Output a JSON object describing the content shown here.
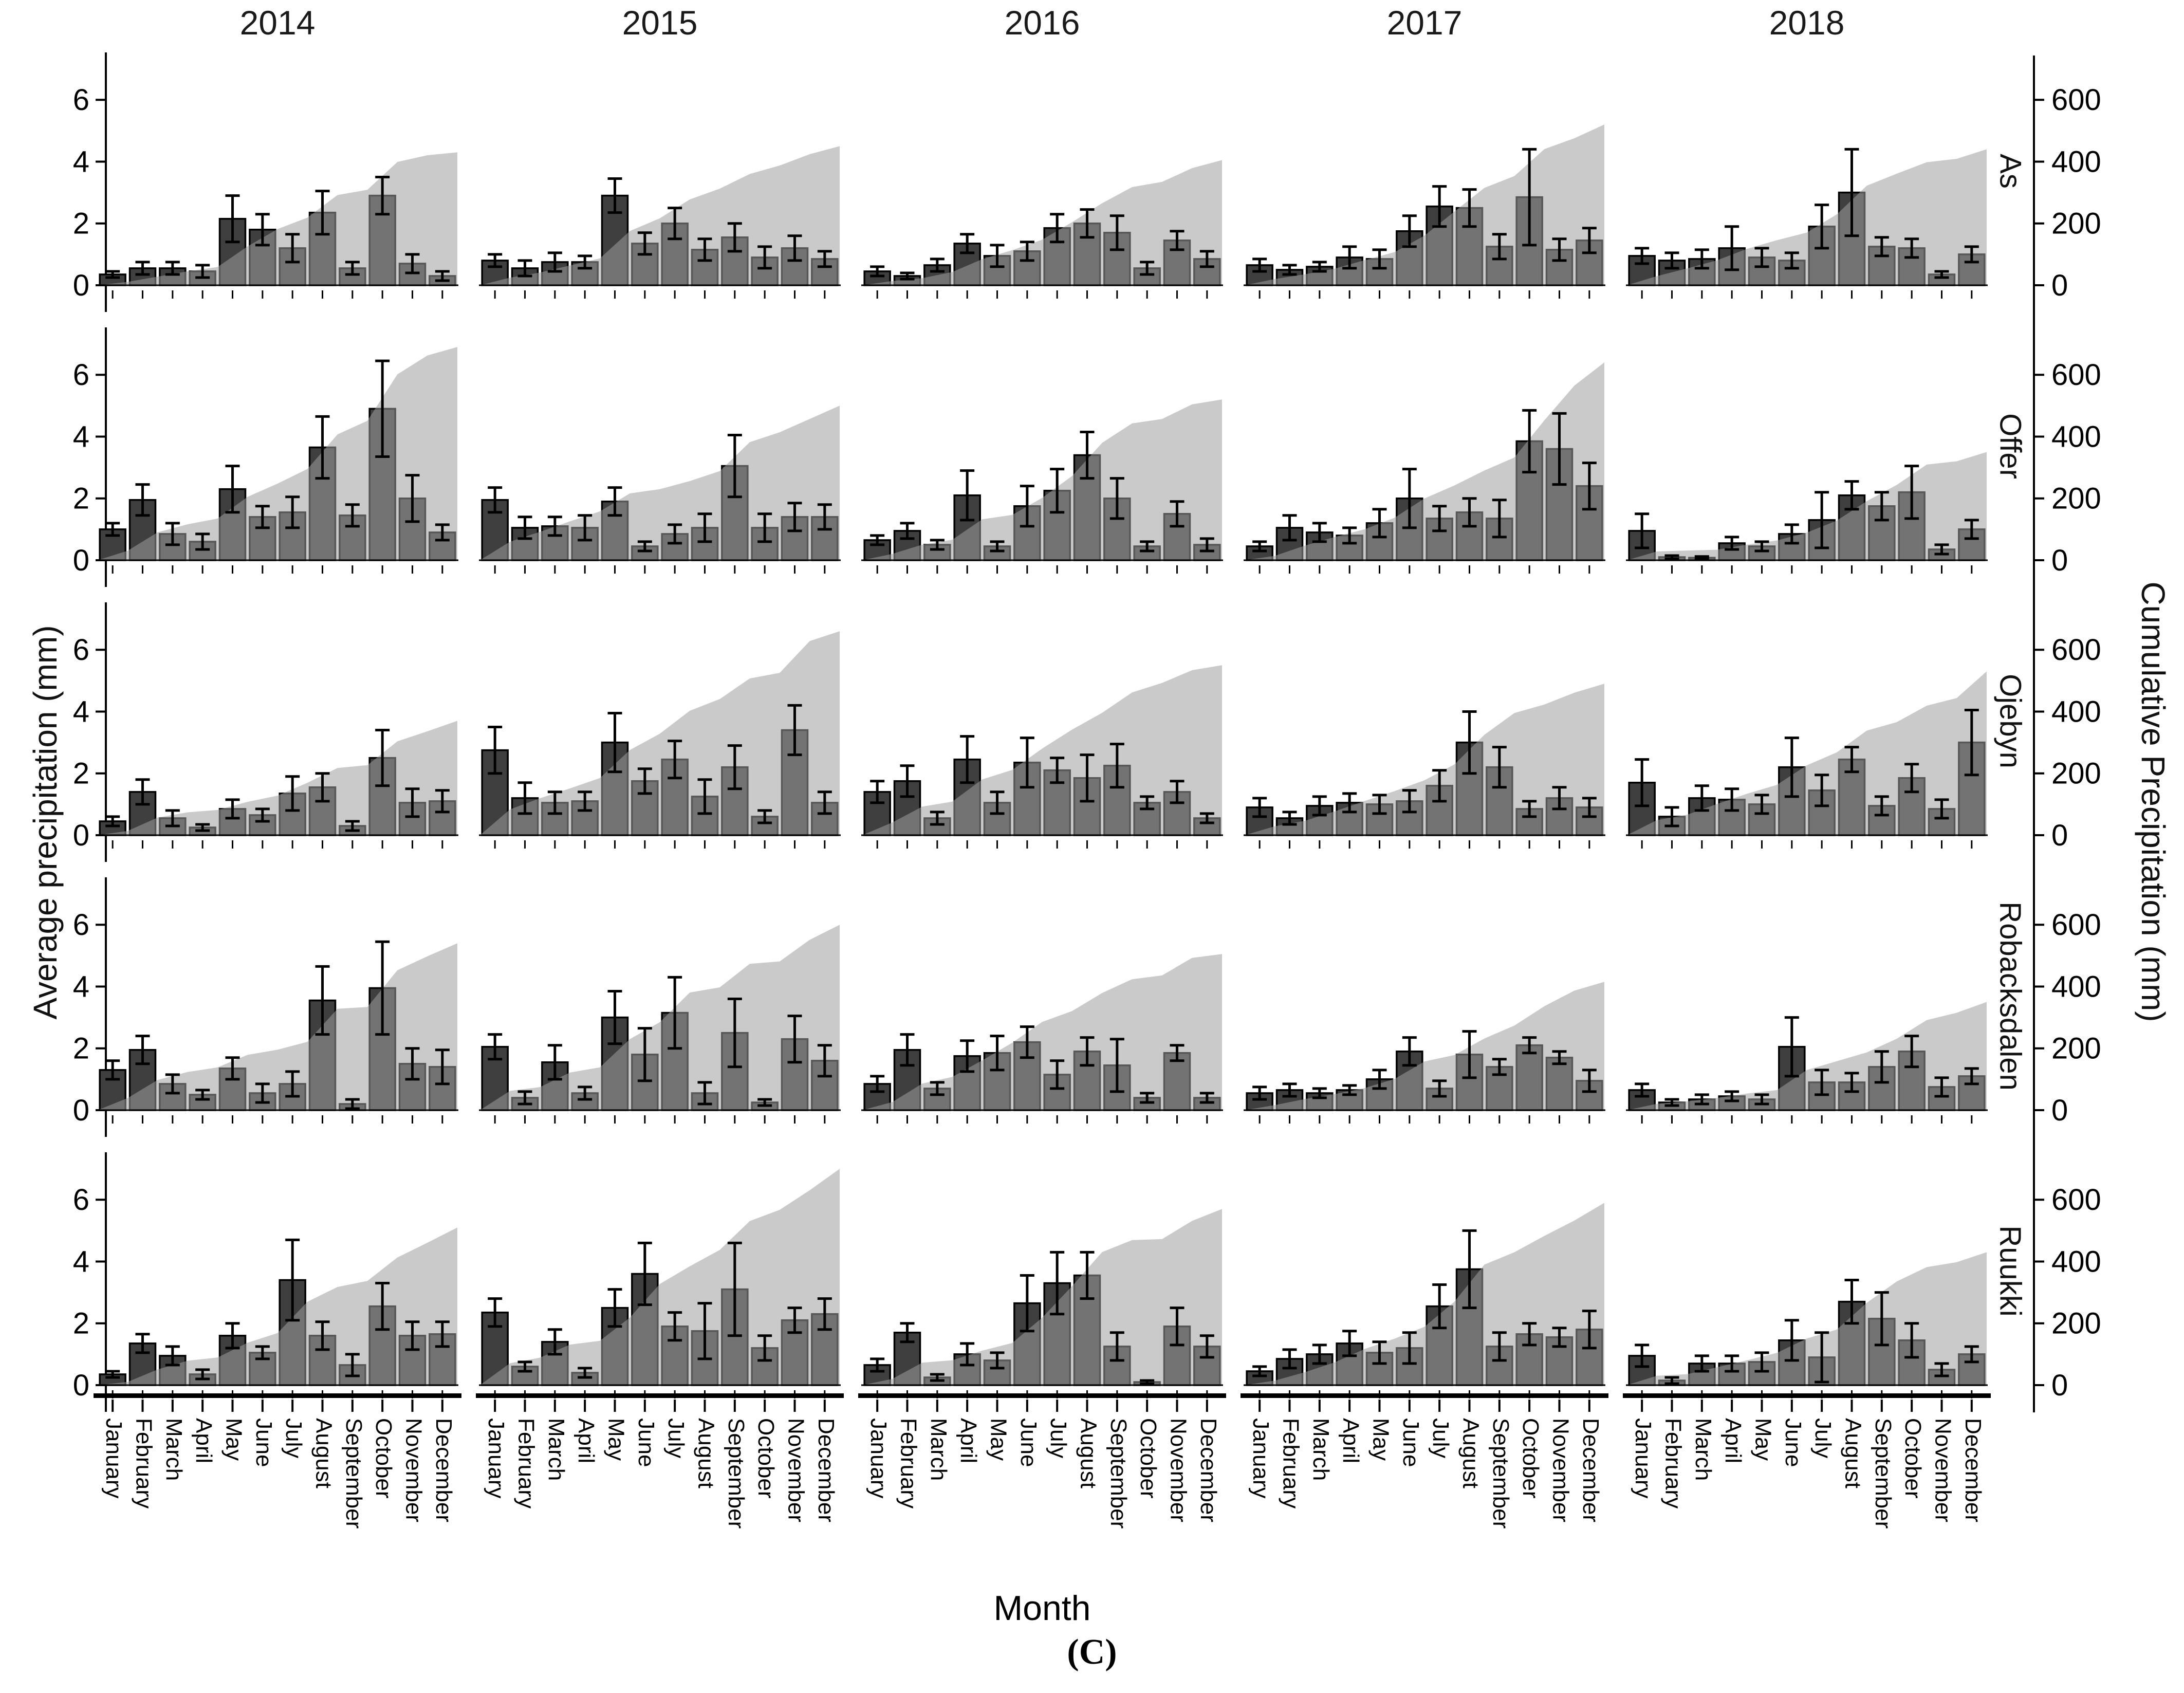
{
  "figure": {
    "caption": "(C)",
    "x_axis_title": "Month",
    "y_axis_title_left": "Average precipitation (mm)",
    "y_axis_title_right": "Cumulative Precipitation (mm)"
  },
  "chart_data": {
    "type": "bar",
    "layout": "faceted-grid-5x5",
    "title": "",
    "xlabel": "Month",
    "ylabel_left": "Average precipitation (mm)",
    "ylabel_right": "Cumulative Precipitation (mm)",
    "caption": "(C)",
    "columns": [
      "2014",
      "2015",
      "2016",
      "2017",
      "2018"
    ],
    "rows": [
      "As",
      "Offer",
      "Ojebyn",
      "Robacksdalen",
      "Ruukki"
    ],
    "months": [
      "January",
      "February",
      "March",
      "April",
      "May",
      "June",
      "July",
      "August",
      "September",
      "October",
      "November",
      "December"
    ],
    "yticks_left": [
      0,
      2,
      4,
      6
    ],
    "yticks_right": [
      0,
      200,
      400,
      600
    ],
    "ylim_left": [
      0,
      7.4
    ],
    "right_axis_units_per_left_unit": 100,
    "grid": false,
    "colors": {
      "bar_fill": "#3f3f3f",
      "bar_stroke": "#000000",
      "area_fill": "#9e9e9e",
      "area_opacity": 0.55,
      "error_bar": "#000000",
      "axis": "#000000",
      "background": "#ffffff"
    },
    "panels": [
      {
        "site": "As",
        "year": "2014",
        "values": [
          0.35,
          0.55,
          0.55,
          0.45,
          2.15,
          1.8,
          1.2,
          2.35,
          0.55,
          2.9,
          0.7,
          0.3
        ],
        "errors": [
          0.1,
          0.2,
          0.2,
          0.2,
          0.75,
          0.5,
          0.45,
          0.7,
          0.2,
          0.6,
          0.3,
          0.15
        ],
        "cumulative_mm": 430
      },
      {
        "site": "As",
        "year": "2015",
        "values": [
          0.8,
          0.55,
          0.75,
          0.75,
          2.9,
          1.35,
          2.0,
          1.15,
          1.55,
          0.9,
          1.2,
          0.85
        ],
        "errors": [
          0.2,
          0.25,
          0.3,
          0.2,
          0.55,
          0.35,
          0.5,
          0.35,
          0.45,
          0.35,
          0.4,
          0.25
        ],
        "cumulative_mm": 450
      },
      {
        "site": "As",
        "year": "2016",
        "values": [
          0.45,
          0.3,
          0.65,
          1.35,
          0.95,
          1.1,
          1.85,
          2.0,
          1.7,
          0.55,
          1.45,
          0.85
        ],
        "errors": [
          0.15,
          0.1,
          0.2,
          0.3,
          0.35,
          0.3,
          0.45,
          0.45,
          0.55,
          0.2,
          0.3,
          0.25
        ],
        "cumulative_mm": 405
      },
      {
        "site": "As",
        "year": "2017",
        "values": [
          0.65,
          0.5,
          0.6,
          0.9,
          0.85,
          1.75,
          2.55,
          2.5,
          1.25,
          2.85,
          1.15,
          1.45
        ],
        "errors": [
          0.2,
          0.15,
          0.15,
          0.35,
          0.3,
          0.5,
          0.65,
          0.6,
          0.4,
          1.55,
          0.35,
          0.4
        ],
        "cumulative_mm": 520
      },
      {
        "site": "As",
        "year": "2018",
        "values": [
          0.95,
          0.8,
          0.85,
          1.2,
          0.9,
          0.8,
          1.9,
          3.0,
          1.25,
          1.2,
          0.35,
          1.0
        ],
        "errors": [
          0.25,
          0.25,
          0.3,
          0.7,
          0.3,
          0.25,
          0.7,
          1.4,
          0.3,
          0.3,
          0.1,
          0.25
        ],
        "cumulative_mm": 440
      },
      {
        "site": "Offer",
        "year": "2014",
        "values": [
          1.0,
          1.95,
          0.85,
          0.6,
          2.3,
          1.4,
          1.55,
          3.65,
          1.45,
          4.9,
          2.0,
          0.9
        ],
        "errors": [
          0.2,
          0.5,
          0.35,
          0.25,
          0.75,
          0.35,
          0.5,
          1.0,
          0.35,
          1.55,
          0.75,
          0.25
        ],
        "cumulative_mm": 690
      },
      {
        "site": "Offer",
        "year": "2015",
        "values": [
          1.95,
          1.05,
          1.1,
          1.05,
          1.9,
          0.45,
          0.85,
          1.05,
          3.05,
          1.05,
          1.4,
          1.4
        ],
        "errors": [
          0.4,
          0.35,
          0.3,
          0.4,
          0.45,
          0.15,
          0.3,
          0.45,
          1.0,
          0.45,
          0.45,
          0.4
        ],
        "cumulative_mm": 500
      },
      {
        "site": "Offer",
        "year": "2016",
        "values": [
          0.65,
          0.95,
          0.5,
          2.1,
          0.45,
          1.75,
          2.25,
          3.4,
          2.0,
          0.45,
          1.5,
          0.5
        ],
        "errors": [
          0.15,
          0.25,
          0.15,
          0.8,
          0.15,
          0.65,
          0.7,
          0.75,
          0.65,
          0.15,
          0.4,
          0.2
        ],
        "cumulative_mm": 520
      },
      {
        "site": "Offer",
        "year": "2017",
        "values": [
          0.45,
          1.05,
          0.9,
          0.8,
          1.2,
          2.0,
          1.35,
          1.55,
          1.35,
          3.85,
          3.6,
          2.4
        ],
        "errors": [
          0.15,
          0.4,
          0.3,
          0.25,
          0.45,
          0.95,
          0.4,
          0.45,
          0.6,
          1.0,
          1.15,
          0.75
        ],
        "cumulative_mm": 640
      },
      {
        "site": "Offer",
        "year": "2018",
        "values": [
          0.95,
          0.1,
          0.08,
          0.55,
          0.45,
          0.85,
          1.3,
          2.1,
          1.75,
          2.2,
          0.35,
          1.0
        ],
        "errors": [
          0.55,
          0.05,
          0.04,
          0.2,
          0.15,
          0.3,
          0.9,
          0.45,
          0.45,
          0.85,
          0.15,
          0.3
        ],
        "cumulative_mm": 350
      },
      {
        "site": "Ojebyn",
        "year": "2014",
        "values": [
          0.45,
          1.4,
          0.55,
          0.25,
          0.85,
          0.65,
          1.35,
          1.55,
          0.3,
          2.5,
          1.05,
          1.1
        ],
        "errors": [
          0.15,
          0.4,
          0.25,
          0.1,
          0.3,
          0.2,
          0.55,
          0.45,
          0.15,
          0.9,
          0.45,
          0.35
        ],
        "cumulative_mm": 370
      },
      {
        "site": "Ojebyn",
        "year": "2015",
        "values": [
          2.75,
          1.2,
          1.05,
          1.1,
          3.0,
          1.75,
          2.45,
          1.25,
          2.2,
          0.6,
          3.4,
          1.05
        ],
        "errors": [
          0.75,
          0.5,
          0.35,
          0.3,
          0.95,
          0.4,
          0.6,
          0.55,
          0.7,
          0.2,
          0.8,
          0.35
        ],
        "cumulative_mm": 660
      },
      {
        "site": "Ojebyn",
        "year": "2016",
        "values": [
          1.4,
          1.75,
          0.55,
          2.45,
          1.05,
          2.35,
          2.1,
          1.85,
          2.25,
          1.05,
          1.4,
          0.55
        ],
        "errors": [
          0.35,
          0.5,
          0.2,
          0.75,
          0.35,
          0.8,
          0.4,
          0.75,
          0.7,
          0.2,
          0.35,
          0.15
        ],
        "cumulative_mm": 550
      },
      {
        "site": "Ojebyn",
        "year": "2017",
        "values": [
          0.9,
          0.55,
          0.95,
          1.05,
          1.0,
          1.1,
          1.6,
          3.0,
          2.2,
          0.85,
          1.2,
          0.9
        ],
        "errors": [
          0.3,
          0.2,
          0.3,
          0.3,
          0.3,
          0.35,
          0.5,
          1.0,
          0.65,
          0.25,
          0.35,
          0.3
        ],
        "cumulative_mm": 490
      },
      {
        "site": "Ojebyn",
        "year": "2018",
        "values": [
          1.7,
          0.6,
          1.2,
          1.15,
          1.0,
          2.2,
          1.45,
          2.45,
          0.95,
          1.85,
          0.85,
          3.0
        ],
        "errors": [
          0.75,
          0.3,
          0.4,
          0.35,
          0.3,
          0.95,
          0.5,
          0.4,
          0.3,
          0.45,
          0.3,
          1.05
        ],
        "cumulative_mm": 530
      },
      {
        "site": "Robacksdalen",
        "year": "2014",
        "values": [
          1.3,
          1.95,
          0.85,
          0.5,
          1.35,
          0.55,
          0.85,
          3.55,
          0.2,
          3.95,
          1.5,
          1.4
        ],
        "errors": [
          0.3,
          0.45,
          0.3,
          0.15,
          0.35,
          0.3,
          0.4,
          1.1,
          0.15,
          1.5,
          0.5,
          0.55
        ],
        "cumulative_mm": 540
      },
      {
        "site": "Robacksdalen",
        "year": "2015",
        "values": [
          2.05,
          0.4,
          1.55,
          0.55,
          3.0,
          1.8,
          3.15,
          0.55,
          2.5,
          0.25,
          2.3,
          1.6
        ],
        "errors": [
          0.4,
          0.2,
          0.55,
          0.2,
          0.85,
          0.85,
          1.15,
          0.35,
          1.1,
          0.1,
          0.75,
          0.5
        ],
        "cumulative_mm": 600
      },
      {
        "site": "Robacksdalen",
        "year": "2016",
        "values": [
          0.85,
          1.95,
          0.7,
          1.75,
          1.85,
          2.2,
          1.15,
          1.9,
          1.45,
          0.4,
          1.85,
          0.4
        ],
        "errors": [
          0.25,
          0.5,
          0.2,
          0.5,
          0.55,
          0.5,
          0.45,
          0.45,
          0.85,
          0.15,
          0.25,
          0.15
        ],
        "cumulative_mm": 505
      },
      {
        "site": "Robacksdalen",
        "year": "2017",
        "values": [
          0.55,
          0.65,
          0.55,
          0.65,
          1.0,
          1.9,
          0.7,
          1.8,
          1.4,
          2.1,
          1.7,
          0.95
        ],
        "errors": [
          0.2,
          0.2,
          0.15,
          0.15,
          0.3,
          0.45,
          0.25,
          0.75,
          0.25,
          0.25,
          0.2,
          0.35
        ],
        "cumulative_mm": 415
      },
      {
        "site": "Robacksdalen",
        "year": "2018",
        "values": [
          0.65,
          0.25,
          0.35,
          0.45,
          0.35,
          2.05,
          0.9,
          0.9,
          1.4,
          1.9,
          0.75,
          1.1
        ],
        "errors": [
          0.2,
          0.1,
          0.15,
          0.15,
          0.15,
          0.95,
          0.4,
          0.3,
          0.5,
          0.5,
          0.3,
          0.25
        ],
        "cumulative_mm": 350
      },
      {
        "site": "Ruukki",
        "year": "2014",
        "values": [
          0.35,
          1.35,
          0.95,
          0.35,
          1.6,
          1.05,
          3.4,
          1.6,
          0.65,
          2.55,
          1.6,
          1.65
        ],
        "errors": [
          0.1,
          0.3,
          0.3,
          0.15,
          0.4,
          0.2,
          1.3,
          0.45,
          0.35,
          0.75,
          0.45,
          0.4
        ],
        "cumulative_mm": 510
      },
      {
        "site": "Ruukki",
        "year": "2015",
        "values": [
          2.35,
          0.6,
          1.4,
          0.4,
          2.5,
          3.6,
          1.9,
          1.75,
          3.1,
          1.2,
          2.1,
          2.3
        ],
        "errors": [
          0.45,
          0.15,
          0.4,
          0.15,
          0.6,
          1.0,
          0.45,
          0.9,
          1.5,
          0.4,
          0.4,
          0.5
        ],
        "cumulative_mm": 700
      },
      {
        "site": "Ruukki",
        "year": "2016",
        "values": [
          0.65,
          1.7,
          0.25,
          1.0,
          0.8,
          2.65,
          3.3,
          3.55,
          1.25,
          0.1,
          1.9,
          1.25
        ],
        "errors": [
          0.2,
          0.3,
          0.1,
          0.35,
          0.25,
          0.9,
          1.0,
          0.75,
          0.45,
          0.05,
          0.6,
          0.35
        ],
        "cumulative_mm": 570
      },
      {
        "site": "Ruukki",
        "year": "2017",
        "values": [
          0.45,
          0.85,
          1.0,
          1.35,
          1.05,
          1.2,
          2.55,
          3.75,
          1.25,
          1.65,
          1.55,
          1.8
        ],
        "errors": [
          0.15,
          0.3,
          0.3,
          0.4,
          0.35,
          0.5,
          0.7,
          1.25,
          0.45,
          0.35,
          0.3,
          0.6
        ],
        "cumulative_mm": 590
      },
      {
        "site": "Ruukki",
        "year": "2018",
        "values": [
          0.95,
          0.15,
          0.7,
          0.7,
          0.75,
          1.45,
          0.9,
          2.7,
          2.15,
          1.45,
          0.5,
          1.0
        ],
        "errors": [
          0.35,
          0.1,
          0.25,
          0.25,
          0.3,
          0.65,
          0.8,
          0.7,
          0.85,
          0.55,
          0.2,
          0.25
        ],
        "cumulative_mm": 430
      }
    ]
  }
}
